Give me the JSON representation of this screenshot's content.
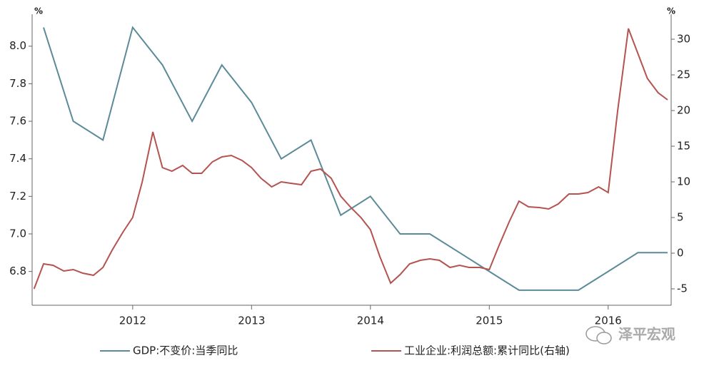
{
  "chart_data": {
    "type": "line",
    "y_unit": "%",
    "y2_unit": "%",
    "xlim": [
      2011.154,
      2016.53
    ],
    "xticks": [
      2012,
      2013,
      2014,
      2015,
      2016
    ],
    "ylim": [
      6.62,
      8.17
    ],
    "yticks": [
      6.8,
      {
        "value": 7,
        "label": "7.0"
      },
      7.2,
      7.4,
      7.6,
      7.8,
      {
        "value": 8,
        "label": "8.0"
      }
    ],
    "y2lim": [
      -7.3,
      33.5
    ],
    "y2ticks": [
      -5,
      0,
      5,
      10,
      15,
      20,
      25,
      30
    ],
    "series": [
      {
        "name": "GDP:不变价:当季同比",
        "color": "#5b8b98",
        "x": [
          2011.25,
          2011.5,
          2011.75,
          2012.0,
          2012.25,
          2012.5,
          2012.75,
          2013.0,
          2013.25,
          2013.5,
          2013.75,
          2014.0,
          2014.25,
          2014.5,
          2014.75,
          2015.0,
          2015.25,
          2015.5,
          2015.75,
          2016.0,
          2016.25,
          2016.5
        ],
        "values": [
          8.1,
          7.6,
          7.5,
          8.1,
          7.9,
          7.6,
          7.9,
          7.7,
          7.4,
          7.5,
          7.1,
          7.2,
          7.0,
          7.0,
          6.9,
          6.8,
          6.7,
          6.7,
          6.7,
          6.8,
          6.9,
          6.9
        ]
      },
      {
        "name": "工业企业:利润总额:累计同比(右轴)",
        "color": "#b4534f",
        "axis": "y2",
        "x": [
          2011.17,
          2011.25,
          2011.33,
          2011.42,
          2011.5,
          2011.58,
          2011.67,
          2011.75,
          2011.83,
          2011.92,
          2012.0,
          2012.08,
          2012.17,
          2012.25,
          2012.33,
          2012.42,
          2012.5,
          2012.58,
          2012.67,
          2012.75,
          2012.83,
          2012.92,
          2013.0,
          2013.08,
          2013.17,
          2013.25,
          2013.33,
          2013.42,
          2013.5,
          2013.58,
          2013.67,
          2013.75,
          2013.83,
          2013.92,
          2014.0,
          2014.08,
          2014.17,
          2014.25,
          2014.33,
          2014.42,
          2014.5,
          2014.58,
          2014.67,
          2014.75,
          2014.83,
          2014.92,
          2015.0,
          2015.08,
          2015.17,
          2015.25,
          2015.33,
          2015.42,
          2015.5,
          2015.58,
          2015.67,
          2015.75,
          2015.83,
          2015.92,
          2016.0,
          2016.08,
          2016.17,
          2016.25,
          2016.33,
          2016.42,
          2016.5
        ],
        "values": [
          -5,
          -1.5,
          -1.7,
          -2.5,
          -2.3,
          -2.8,
          -3.1,
          -2,
          0.5,
          3,
          5,
          10,
          17,
          12,
          11.5,
          12.3,
          11.2,
          11.2,
          12.8,
          13.5,
          13.7,
          13,
          12,
          10.5,
          9.3,
          10,
          9.8,
          9.6,
          11.5,
          11.8,
          10.5,
          8,
          6.5,
          5,
          3.3,
          -0.5,
          -4.2,
          -3,
          -1.5,
          -1,
          -0.8,
          -1,
          -2,
          -1.7,
          -2,
          -2,
          -2.3,
          1,
          4.5,
          7.3,
          6.5,
          6.4,
          6.2,
          6.9,
          8.3,
          8.3,
          8.5,
          9.3,
          8.5,
          20,
          31.5,
          28,
          24.5,
          22.5,
          21.5
        ]
      }
    ],
    "watermark": "泽平宏观"
  }
}
